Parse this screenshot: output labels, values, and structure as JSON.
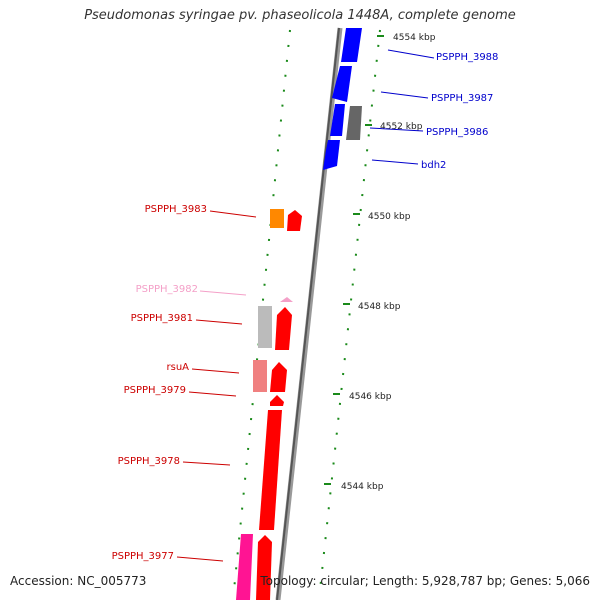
{
  "title": "Pseudomonas syringae pv. phaseolicola 1448A, complete genome",
  "footer": {
    "accession": "Accession: NC_005773",
    "summary": "Topology: circular; Length: 5,928,787 bp; Genes: 5,066"
  },
  "scale_labels": [
    "4554 kbp",
    "4552 kbp",
    "4550 kbp",
    "4548 kbp",
    "4546 kbp",
    "4544 kbp"
  ],
  "gene_labels": [
    {
      "name": "PSPPH_3988",
      "color": "#0000cc",
      "side": "right"
    },
    {
      "name": "PSPPH_3987",
      "color": "#0000cc",
      "side": "right"
    },
    {
      "name": "PSPPH_3986",
      "color": "#0000cc",
      "side": "right"
    },
    {
      "name": "bdh2",
      "color": "#0000cc",
      "side": "right"
    },
    {
      "name": "PSPPH_3983",
      "color": "#cc0000",
      "side": "left"
    },
    {
      "name": "PSPPH_3982",
      "color": "#f4a0c8",
      "side": "left"
    },
    {
      "name": "PSPPH_3981",
      "color": "#cc0000",
      "side": "left"
    },
    {
      "name": "rsuA",
      "color": "#cc0000",
      "side": "left"
    },
    {
      "name": "PSPPH_3979",
      "color": "#cc0000",
      "side": "left"
    },
    {
      "name": "PSPPH_3978",
      "color": "#cc0000",
      "side": "left"
    },
    {
      "name": "PSPPH_3977",
      "color": "#cc0000",
      "side": "left"
    }
  ],
  "colors": {
    "forward_cds": "#ff0000",
    "reverse_cds": "#0000ff",
    "grey_cds": "#666666",
    "light_grey_cds": "#bbbbbb",
    "orange_cds": "#ff8800",
    "salmon_cds": "#f08080",
    "magenta_cds": "#ff1493",
    "pink_cds": "#f4a0c8",
    "backbone": "#888888",
    "ticks": "#1a8a1a"
  }
}
